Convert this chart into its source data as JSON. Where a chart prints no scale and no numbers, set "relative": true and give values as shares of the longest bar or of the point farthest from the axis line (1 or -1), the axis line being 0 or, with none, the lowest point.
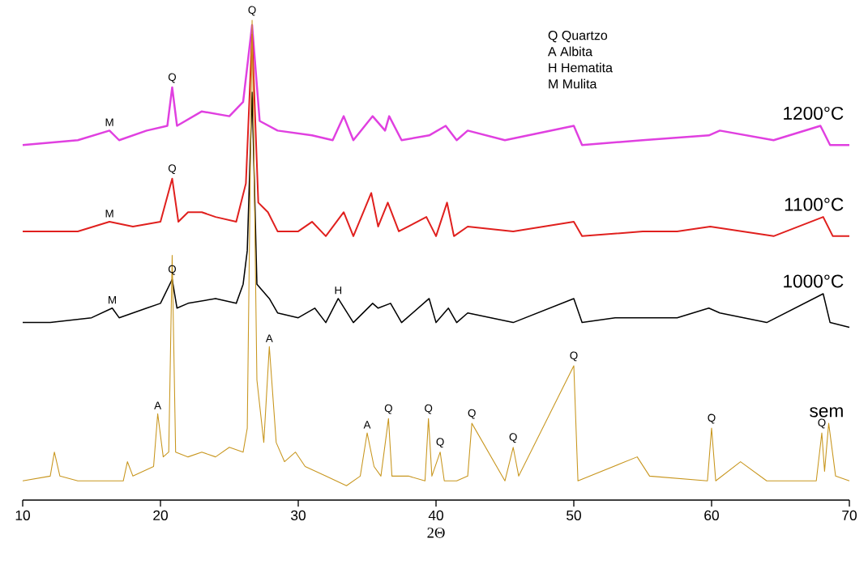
{
  "chart_data": {
    "type": "line",
    "relative": true,
    "xlabel": "2Θ",
    "xlim": [
      10,
      70
    ],
    "xticks": [
      10,
      20,
      30,
      40,
      50,
      60,
      70
    ],
    "series": [
      {
        "name": "1200°C",
        "color": "#e040e0",
        "x": [
          10,
          14,
          16.3,
          17,
          19,
          20.5,
          20.85,
          21.2,
          23,
          25,
          26,
          26.65,
          27.2,
          28.5,
          31,
          32.5,
          33.3,
          34,
          35.4,
          36.3,
          36.6,
          37.5,
          39.5,
          40.7,
          41.5,
          42.3,
          45,
          50,
          50.6,
          55,
          59.8,
          60.6,
          64.5,
          67.9,
          68.6,
          70
        ],
        "values": [
          0.74,
          0.75,
          0.77,
          0.75,
          0.77,
          0.78,
          0.86,
          0.78,
          0.81,
          0.8,
          0.83,
          0.99,
          0.79,
          0.77,
          0.76,
          0.75,
          0.8,
          0.75,
          0.8,
          0.77,
          0.8,
          0.75,
          0.76,
          0.78,
          0.75,
          0.77,
          0.75,
          0.78,
          0.74,
          0.75,
          0.76,
          0.77,
          0.75,
          0.78,
          0.74,
          0.74
        ]
      },
      {
        "name": "1100°C",
        "color": "#e0201e",
        "x": [
          10,
          14,
          16.3,
          18,
          20,
          20.85,
          21.3,
          22,
          23,
          24,
          25.5,
          26.2,
          26.65,
          27.1,
          27.8,
          28.5,
          30,
          31,
          32,
          33.3,
          34,
          35.3,
          35.8,
          36.5,
          37.3,
          39.3,
          40,
          40.8,
          41.3,
          42.3,
          45.6,
          50,
          50.6,
          55,
          57.5,
          59.9,
          64.5,
          68.1,
          68.8,
          70
        ],
        "values": [
          0.56,
          0.56,
          0.58,
          0.57,
          0.58,
          0.67,
          0.58,
          0.6,
          0.6,
          0.59,
          0.58,
          0.66,
          0.97,
          0.62,
          0.6,
          0.56,
          0.56,
          0.58,
          0.55,
          0.6,
          0.55,
          0.64,
          0.57,
          0.62,
          0.56,
          0.59,
          0.55,
          0.62,
          0.55,
          0.57,
          0.56,
          0.58,
          0.55,
          0.56,
          0.56,
          0.57,
          0.55,
          0.59,
          0.55,
          0.55
        ]
      },
      {
        "name": "1000°C",
        "color": "#000000",
        "x": [
          10,
          12,
          15,
          16.5,
          17,
          19,
          20,
          20.85,
          21.2,
          22,
          24,
          25.5,
          26,
          26.3,
          26.65,
          27,
          27.9,
          28.5,
          30,
          31.2,
          32,
          32.9,
          34,
          35.4,
          35.8,
          36.7,
          37.5,
          39.5,
          40,
          40.9,
          41.5,
          42.3,
          45.6,
          50,
          50.6,
          53,
          57.5,
          59.8,
          60.6,
          64,
          68.1,
          68.6,
          70
        ],
        "values": [
          0.37,
          0.37,
          0.38,
          0.4,
          0.38,
          0.4,
          0.41,
          0.46,
          0.4,
          0.41,
          0.42,
          0.41,
          0.45,
          0.52,
          0.85,
          0.45,
          0.42,
          0.39,
          0.38,
          0.4,
          0.37,
          0.42,
          0.37,
          0.41,
          0.4,
          0.41,
          0.37,
          0.42,
          0.37,
          0.4,
          0.37,
          0.39,
          0.37,
          0.42,
          0.37,
          0.38,
          0.38,
          0.4,
          0.39,
          0.37,
          0.43,
          0.37,
          0.36
        ]
      },
      {
        "name": "sem",
        "color": "#c8961e",
        "x": [
          10,
          12,
          12.3,
          12.7,
          14,
          17.3,
          17.6,
          18,
          19.5,
          19.8,
          20.2,
          20.6,
          20.85,
          21.1,
          22,
          23,
          24,
          25,
          26,
          26.3,
          26.65,
          27,
          27.5,
          27.9,
          28.4,
          29,
          29.8,
          30.5,
          32,
          33.5,
          34.5,
          35,
          35.5,
          36,
          36.55,
          36.8,
          38,
          39.2,
          39.45,
          39.7,
          40.3,
          40.6,
          41.5,
          42.3,
          42.6,
          45,
          45.6,
          46,
          50,
          50.3,
          54.6,
          55.5,
          59.7,
          60,
          60.3,
          62.1,
          64,
          67.6,
          68,
          68.2,
          68.5,
          69,
          70
        ],
        "values": [
          0.04,
          0.05,
          0.1,
          0.05,
          0.04,
          0.04,
          0.08,
          0.05,
          0.07,
          0.18,
          0.09,
          0.1,
          0.51,
          0.1,
          0.09,
          0.1,
          0.09,
          0.11,
          0.1,
          0.15,
          1.0,
          0.25,
          0.12,
          0.32,
          0.12,
          0.08,
          0.1,
          0.07,
          0.05,
          0.03,
          0.05,
          0.14,
          0.07,
          0.05,
          0.17,
          0.05,
          0.05,
          0.04,
          0.17,
          0.05,
          0.1,
          0.04,
          0.04,
          0.05,
          0.16,
          0.04,
          0.11,
          0.05,
          0.28,
          0.04,
          0.09,
          0.05,
          0.04,
          0.15,
          0.04,
          0.08,
          0.04,
          0.04,
          0.14,
          0.06,
          0.16,
          0.05,
          0.04
        ]
      }
    ],
    "annotations": [
      {
        "text": "Q",
        "x": 20.85,
        "y": 0.86
      },
      {
        "text": "M",
        "x": 16.3,
        "y": 0.77
      },
      {
        "text": "Q",
        "x": 20.85,
        "y": 0.67
      },
      {
        "text": "M",
        "x": 16.3,
        "y": 0.58
      },
      {
        "text": "Q",
        "x": 20.85,
        "y": 0.46
      },
      {
        "text": "M",
        "x": 16.5,
        "y": 0.4
      },
      {
        "text": "H",
        "x": 32.9,
        "y": 0.42
      },
      {
        "text": "Q",
        "x": 26.65,
        "y": 1.0
      },
      {
        "text": "A",
        "x": 19.8,
        "y": 0.18
      },
      {
        "text": "A",
        "x": 27.9,
        "y": 0.32
      },
      {
        "text": "A",
        "x": 35,
        "y": 0.14
      },
      {
        "text": "Q",
        "x": 36.55,
        "y": 0.17
      },
      {
        "text": "Q",
        "x": 39.45,
        "y": 0.17
      },
      {
        "text": "Q",
        "x": 40.3,
        "y": 0.1
      },
      {
        "text": "Q",
        "x": 42.6,
        "y": 0.16
      },
      {
        "text": "Q",
        "x": 45.6,
        "y": 0.11
      },
      {
        "text": "Q",
        "x": 50,
        "y": 0.28
      },
      {
        "text": "Q",
        "x": 60,
        "y": 0.15
      },
      {
        "text": "Q",
        "x": 68,
        "y": 0.14
      },
      "Q Quartzo",
      "A Albita",
      "H Hematita",
      "M Mulita"
    ]
  }
}
